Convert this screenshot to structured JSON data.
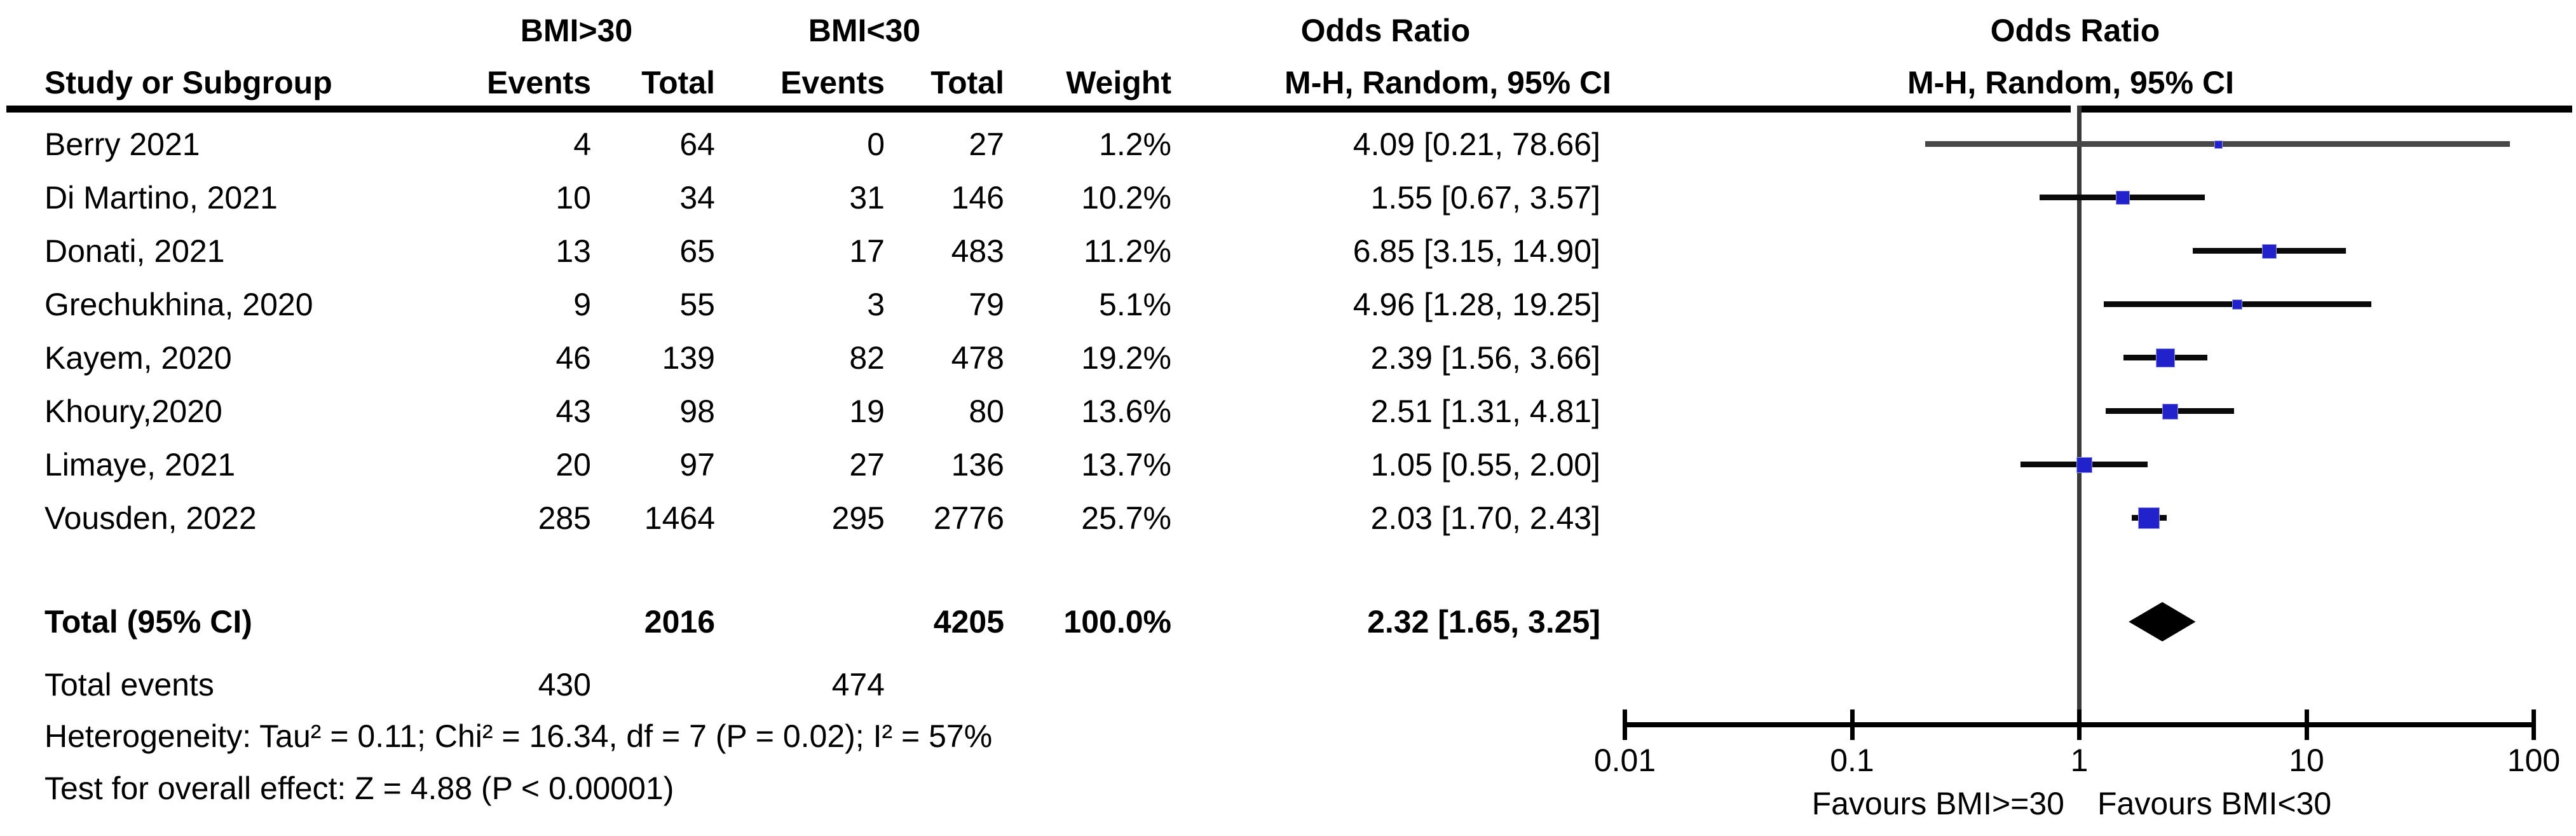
{
  "header": {
    "group1": "BMI>30",
    "group2": "BMI<30",
    "odds_ratio_text_col": "Odds Ratio",
    "odds_ratio_plot_col": "Odds Ratio",
    "mh_random_text_col": "M-H, Random, 95% CI",
    "mh_random_plot_col": "M-H, Random, 95% CI",
    "study_col": "Study or Subgroup",
    "events_col_1": "Events",
    "total_col_1": "Total",
    "events_col_2": "Events",
    "total_col_2": "Total",
    "weight_col": "Weight"
  },
  "chart_data": {
    "type": "scatter",
    "subtype": "forest-plot",
    "x_scale": "log10",
    "x_axis_range": [
      0.01,
      100
    ],
    "x_ticks": [
      0.01,
      0.1,
      1,
      10,
      100
    ],
    "x_tick_labels": [
      "0.01",
      "0.1",
      "1",
      "10",
      "100"
    ],
    "null_line": 1,
    "favours_left": "Favours BMI>=30",
    "favours_right": "Favours BMI<30",
    "studies": [
      {
        "name": "Berry 2021",
        "events1": "4",
        "total1": "64",
        "events2": "0",
        "total2": "27",
        "weight": 1.2,
        "weight_label": "1.2%",
        "or": 4.09,
        "ci_low": 0.21,
        "ci_high": 78.66,
        "or_ci_label": "4.09 [0.21, 78.66]",
        "line_color": "#474747"
      },
      {
        "name": "Di Martino, 2021",
        "events1": "10",
        "total1": "34",
        "events2": "31",
        "total2": "146",
        "weight": 10.2,
        "weight_label": "10.2%",
        "or": 1.55,
        "ci_low": 0.67,
        "ci_high": 3.57,
        "or_ci_label": "1.55 [0.67, 3.57]",
        "line_color": "#0a0a0a"
      },
      {
        "name": "Donati, 2021",
        "events1": "13",
        "total1": "65",
        "events2": "17",
        "total2": "483",
        "weight": 11.2,
        "weight_label": "11.2%",
        "or": 6.85,
        "ci_low": 3.15,
        "ci_high": 14.9,
        "or_ci_label": "6.85 [3.15, 14.90]",
        "line_color": "#0a0a0a"
      },
      {
        "name": "Grechukhina, 2020",
        "events1": "9",
        "total1": "55",
        "events2": "3",
        "total2": "79",
        "weight": 5.1,
        "weight_label": "5.1%",
        "or": 4.96,
        "ci_low": 1.28,
        "ci_high": 19.25,
        "or_ci_label": "4.96 [1.28, 19.25]",
        "line_color": "#0a0a0a"
      },
      {
        "name": "Kayem, 2020",
        "events1": "46",
        "total1": "139",
        "events2": "82",
        "total2": "478",
        "weight": 19.2,
        "weight_label": "19.2%",
        "or": 2.39,
        "ci_low": 1.56,
        "ci_high": 3.66,
        "or_ci_label": "2.39 [1.56, 3.66]",
        "line_color": "#0a0a0a"
      },
      {
        "name": "Khoury,2020",
        "events1": "43",
        "total1": "98",
        "events2": "19",
        "total2": "80",
        "weight": 13.6,
        "weight_label": "13.6%",
        "or": 2.51,
        "ci_low": 1.31,
        "ci_high": 4.81,
        "or_ci_label": "2.51 [1.31, 4.81]",
        "line_color": "#0a0a0a"
      },
      {
        "name": "Limaye, 2021",
        "events1": "20",
        "total1": "97",
        "events2": "27",
        "total2": "136",
        "weight": 13.7,
        "weight_label": "13.7%",
        "or": 1.05,
        "ci_low": 0.55,
        "ci_high": 2.0,
        "or_ci_label": "1.05 [0.55, 2.00]",
        "line_color": "#0a0a0a"
      },
      {
        "name": "Vousden, 2022",
        "events1": "285",
        "total1": "1464",
        "events2": "295",
        "total2": "2776",
        "weight": 25.7,
        "weight_label": "25.7%",
        "or": 2.03,
        "ci_low": 1.7,
        "ci_high": 2.43,
        "or_ci_label": "2.03 [1.70, 2.43]",
        "line_color": "#0a0a0a"
      }
    ],
    "total_row": {
      "label": "Total (95% CI)",
      "total1": "2016",
      "total2": "4205",
      "weight_label": "100.0%",
      "or": 2.32,
      "ci_low": 1.65,
      "ci_high": 3.25,
      "or_ci_label": "2.32 [1.65, 3.25]"
    },
    "total_events_row": {
      "label": "Total events",
      "events1": "430",
      "events2": "474"
    },
    "heterogeneity": "Heterogeneity: Tau² = 0.11; Chi² = 16.34, df = 7 (P = 0.02); I² = 57%",
    "overall_effect": "Test for overall effect: Z = 4.88 (P < 0.00001)"
  },
  "colors": {
    "square": "#2222cc",
    "diamond": "#000000",
    "ci_line": "#0a0a0a",
    "axis": "#000000",
    "null_line": "#3a3a3a"
  }
}
